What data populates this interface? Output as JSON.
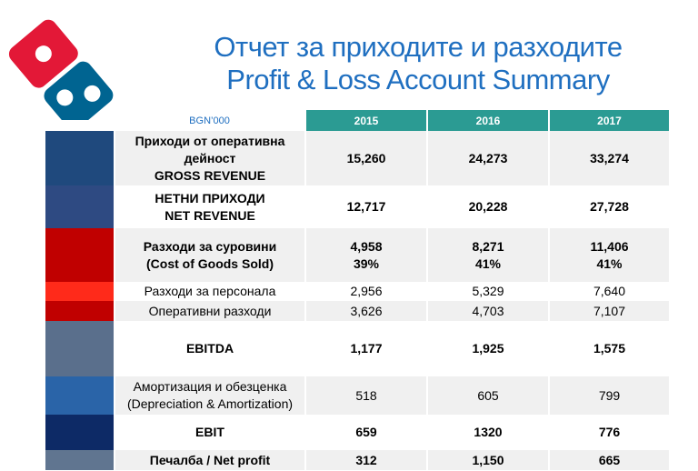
{
  "title": {
    "line1": "Отчет за приходите и разходите",
    "line2": "Profit & Loss Account Summary"
  },
  "table": {
    "unit": "BGN’000",
    "years": [
      "2015",
      "2016",
      "2017"
    ],
    "rows": [
      {
        "label": [
          "Приходи от оперативна",
          "дейност",
          "GROSS REVENUE"
        ],
        "values": [
          [
            "15,260"
          ],
          [
            "24,273"
          ],
          [
            "33,274"
          ]
        ],
        "bold": true,
        "swatch": "#1f497d"
      },
      {
        "label": [
          "НЕТНИ ПРИХОДИ",
          "NET REVENUE"
        ],
        "values": [
          [
            "12,717"
          ],
          [
            "20,228"
          ],
          [
            "27,728"
          ]
        ],
        "bold": true,
        "swatch": "#2e4a82"
      },
      {
        "label": [
          "Разходи за суровини",
          "(Cost of Goods Sold)"
        ],
        "values": [
          [
            "4,958",
            "39%"
          ],
          [
            "8,271",
            "41%"
          ],
          [
            "11,406",
            "41%"
          ]
        ],
        "bold": true,
        "swatch": "#c00000"
      },
      {
        "label": [
          "Разходи за персонала"
        ],
        "values": [
          [
            "2,956"
          ],
          [
            "5,329"
          ],
          [
            "7,640"
          ]
        ],
        "bold": false,
        "swatch": "#ff2a1a"
      },
      {
        "label": [
          "Оперативни разходи"
        ],
        "values": [
          [
            "3,626"
          ],
          [
            "4,703"
          ],
          [
            "7,107"
          ]
        ],
        "bold": false,
        "swatch": "#c00000"
      },
      {
        "label": [
          "EBITDA"
        ],
        "values": [
          [
            "1,177"
          ],
          [
            "1,925"
          ],
          [
            "1,575"
          ]
        ],
        "bold": true,
        "swatch": "#5a6f8c"
      },
      {
        "label": [
          "Амортизация и обезценка",
          "(Depreciation & Amortization)"
        ],
        "values": [
          [
            "518"
          ],
          [
            "605"
          ],
          [
            "799"
          ]
        ],
        "bold": false,
        "swatch": "#2a64a8"
      },
      {
        "label": [
          "EBIT"
        ],
        "values": [
          [
            "659"
          ],
          [
            "1320"
          ],
          [
            "776"
          ]
        ],
        "bold": true,
        "swatch": "#0d2a66"
      },
      {
        "label": [
          "Печалба / Net profit"
        ],
        "values": [
          [
            "312"
          ],
          [
            "1,150"
          ],
          [
            "665"
          ]
        ],
        "bold": true,
        "swatch": "#607590"
      }
    ]
  }
}
